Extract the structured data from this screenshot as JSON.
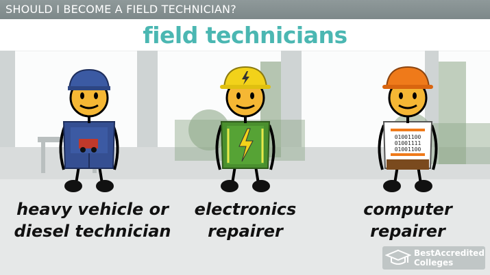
{
  "header": {
    "breadcrumb": "SHOULD I BECOME A FIELD TECHNICIAN?",
    "title": "field technicians"
  },
  "figures": [
    {
      "caption_line1": "heavy vehicle or",
      "caption_line2": "diesel technician",
      "hat_color": "#3b5aa3"
    },
    {
      "caption_line1": "electronics",
      "caption_line2": "repairer",
      "hat_color": "#f2d21a"
    },
    {
      "caption_line1": "computer",
      "caption_line2": "repairer",
      "hat_color": "#ef7a1a"
    }
  ],
  "computer_shirt": {
    "line1": "01001100",
    "line2": "01001111",
    "line3": "01001100"
  },
  "watermark": {
    "line1": "BestAccredited",
    "line2": "Colleges"
  }
}
